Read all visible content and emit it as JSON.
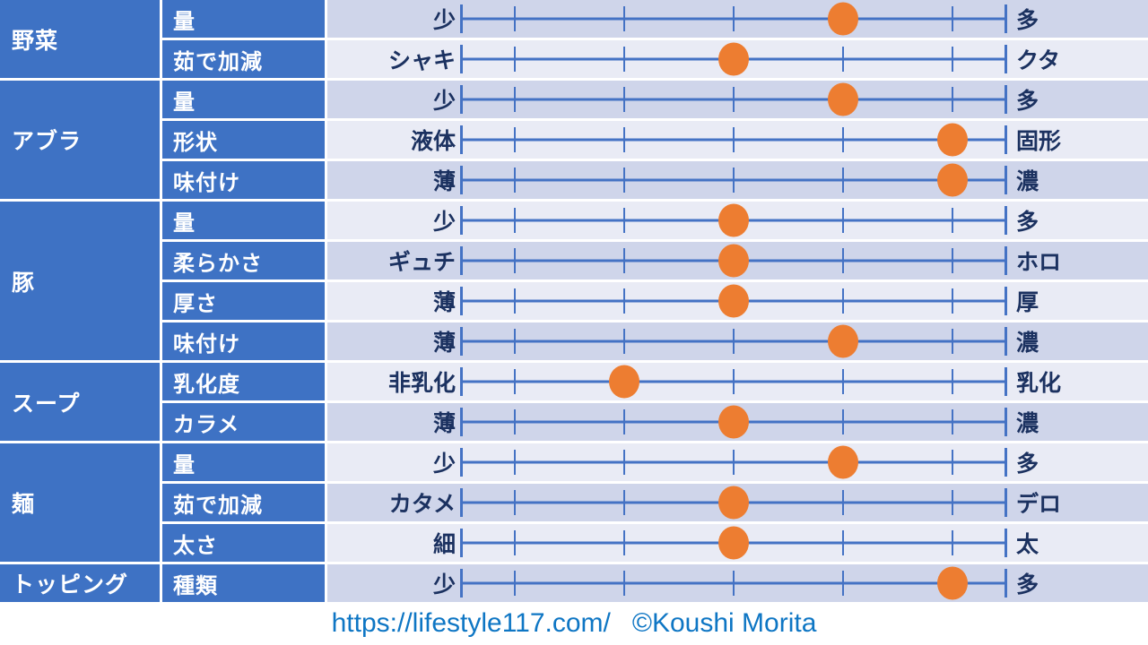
{
  "chart_data": {
    "type": "table",
    "title": "",
    "scale": {
      "positions": 5,
      "min_index": 1,
      "max_index": 5,
      "grid": "tick marks at each of 5 positions plus end bars",
      "marker_color": "#ed7d31",
      "line_color": "#4472c4"
    },
    "groups": [
      {
        "category": "野菜"
      },
      {
        "category": "アブラ"
      },
      {
        "category": "豚"
      },
      {
        "category": "スープ"
      },
      {
        "category": "麺"
      },
      {
        "category": "トッピング"
      }
    ],
    "rows": [
      {
        "category": "野菜",
        "attribute": "量",
        "left_label": "少",
        "right_label": "多",
        "value": 4
      },
      {
        "category": "野菜",
        "attribute": "茹で加減",
        "left_label": "シャキ",
        "right_label": "クタ",
        "value": 3
      },
      {
        "category": "アブラ",
        "attribute": "量",
        "left_label": "少",
        "right_label": "多",
        "value": 4
      },
      {
        "category": "アブラ",
        "attribute": "形状",
        "left_label": "液体",
        "right_label": "固形",
        "value": 5
      },
      {
        "category": "アブラ",
        "attribute": "味付け",
        "left_label": "薄",
        "right_label": "濃",
        "value": 5
      },
      {
        "category": "豚",
        "attribute": "量",
        "left_label": "少",
        "right_label": "多",
        "value": 3
      },
      {
        "category": "豚",
        "attribute": "柔らかさ",
        "left_label": "ギュチ",
        "right_label": "ホロ",
        "value": 3
      },
      {
        "category": "豚",
        "attribute": "厚さ",
        "left_label": "薄",
        "right_label": "厚",
        "value": 3
      },
      {
        "category": "豚",
        "attribute": "味付け",
        "left_label": "薄",
        "right_label": "濃",
        "value": 4
      },
      {
        "category": "スープ",
        "attribute": "乳化度",
        "left_label": "非乳化",
        "right_label": "乳化",
        "value": 2
      },
      {
        "category": "スープ",
        "attribute": "カラメ",
        "left_label": "薄",
        "right_label": "濃",
        "value": 3
      },
      {
        "category": "麺",
        "attribute": "量",
        "left_label": "少",
        "right_label": "多",
        "value": 4
      },
      {
        "category": "麺",
        "attribute": "茹で加減",
        "left_label": "カタメ",
        "right_label": "デロ",
        "value": 3
      },
      {
        "category": "麺",
        "attribute": "太さ",
        "left_label": "細",
        "right_label": "太",
        "value": 3
      },
      {
        "category": "トッピング",
        "attribute": "種類",
        "left_label": "少",
        "right_label": "多",
        "value": 5
      }
    ]
  },
  "colors": {
    "cell_blue": "#3e72c4",
    "band_dark": "#cfd5ea",
    "band_light": "#e9ebf5",
    "line_blue": "#4472c4",
    "dot_orange": "#ed7d31",
    "label_navy": "#1b3160",
    "footer_blue": "#0e76c4"
  },
  "footer": {
    "url": "https://lifestyle117.com/",
    "credit": "©Koushi Morita"
  }
}
